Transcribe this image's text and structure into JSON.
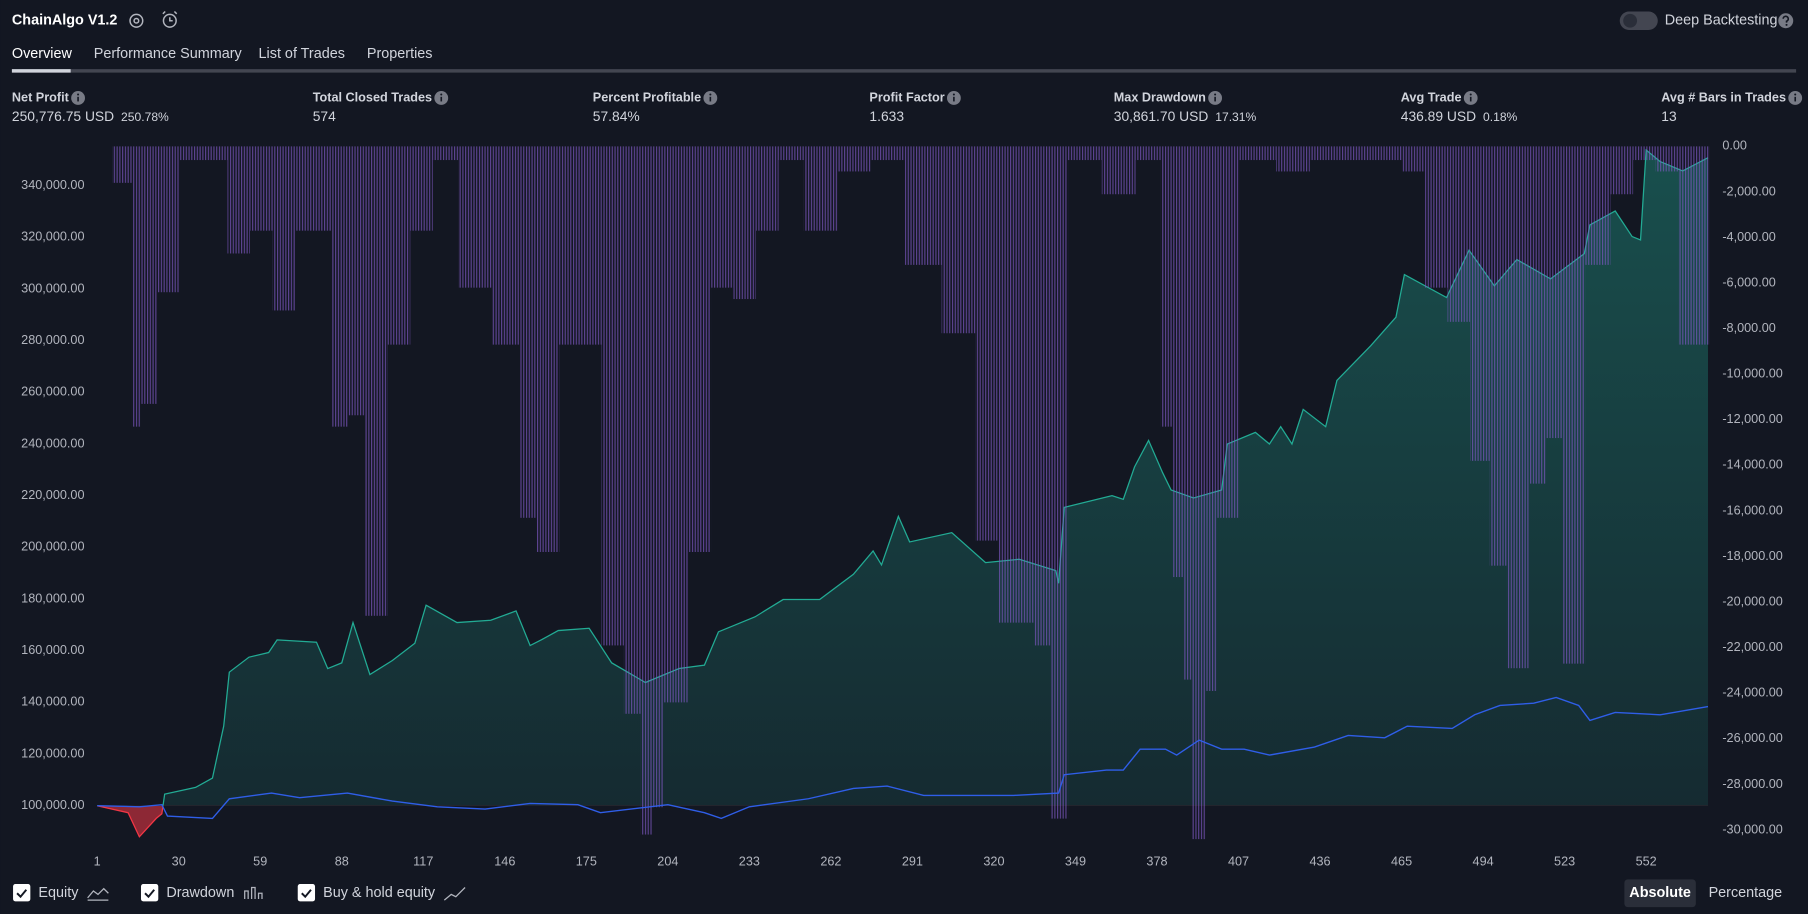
{
  "header": {
    "title": "ChainAlgo V1.2",
    "toggle_label": "Deep Backtesting"
  },
  "tabs": [
    "Overview",
    "Performance Summary",
    "List of Trades",
    "Properties"
  ],
  "stats": [
    {
      "label": "Net Profit",
      "value": "250,776.75 USD",
      "pct": "250.78%",
      "color": "#22ab94"
    },
    {
      "label": "Total Closed Trades",
      "value": "574",
      "color": "#ffffff"
    },
    {
      "label": "Percent Profitable",
      "value": "57.84%",
      "color": "#22ab94"
    },
    {
      "label": "Profit Factor",
      "value": "1.633",
      "color": "#22ab94"
    },
    {
      "label": "Max Drawdown",
      "value": "30,861.70 USD",
      "pct": "17.31%",
      "color": "#f23645"
    },
    {
      "label": "Avg Trade",
      "value": "436.89 USD",
      "pct": "0.18%",
      "color": "#22ab94"
    },
    {
      "label": "Avg # Bars in Trades",
      "value": "13",
      "color": "#ffffff"
    }
  ],
  "chart_data": {
    "type": "combo",
    "xlim": [
      1,
      575
    ],
    "xticks": [
      1,
      30,
      59,
      88,
      117,
      146,
      175,
      204,
      233,
      262,
      291,
      320,
      349,
      378,
      407,
      436,
      465,
      494,
      523,
      552
    ],
    "ylim": [
      86200,
      355200
    ],
    "yticks": [
      {
        "value": 100000,
        "label": "100,000.00"
      },
      {
        "value": 120000,
        "label": "120,000.00"
      },
      {
        "value": 140000,
        "label": "140,000.00"
      },
      {
        "value": 160000,
        "label": "160,000.00"
      },
      {
        "value": 180000,
        "label": "180,000.00"
      },
      {
        "value": 200000,
        "label": "200,000.00"
      },
      {
        "value": 220000,
        "label": "220,000.00"
      },
      {
        "value": 240000,
        "label": "240,000.00"
      },
      {
        "value": 260000,
        "label": "260,000.00"
      },
      {
        "value": 280000,
        "label": "280,000.00"
      },
      {
        "value": 300000,
        "label": "300,000.00"
      },
      {
        "value": 320000,
        "label": "320,000.00"
      },
      {
        "value": 340000,
        "label": "340,000.00"
      }
    ],
    "y2lim": [
      -30500,
      0
    ],
    "y2ticks": [
      {
        "value": 0,
        "label": "0.00"
      },
      {
        "value": -2000,
        "label": "-2,000.00"
      },
      {
        "value": -4000,
        "label": "-4,000.00"
      },
      {
        "value": -6000,
        "label": "-6,000.00"
      },
      {
        "value": -8000,
        "label": "-8,000.00"
      },
      {
        "value": -10000,
        "label": "-10,000.00"
      },
      {
        "value": -12000,
        "label": "-12,000.00"
      },
      {
        "value": -14000,
        "label": "-14,000.00"
      },
      {
        "value": -16000,
        "label": "-16,000.00"
      },
      {
        "value": -18000,
        "label": "-18,000.00"
      },
      {
        "value": -20000,
        "label": "-20,000.00"
      },
      {
        "value": -22000,
        "label": "-22,000.00"
      },
      {
        "value": -24000,
        "label": "-24,000.00"
      },
      {
        "value": -26000,
        "label": "-26,000.00"
      },
      {
        "value": -28000,
        "label": "-28,000.00"
      },
      {
        "value": -30000,
        "label": "-30,000.00"
      }
    ],
    "series": [
      {
        "name": "Equity",
        "type": "area",
        "color": "#22ab94",
        "axis": "y",
        "x": [
          1,
          12,
          16,
          22,
          24,
          25,
          36,
          42,
          46,
          48,
          55,
          62,
          65,
          79,
          83,
          88,
          92,
          98,
          106,
          114,
          118,
          129,
          141,
          150,
          155,
          159,
          165,
          176,
          184,
          196,
          208,
          217,
          222,
          235,
          245,
          258,
          270,
          277,
          280,
          286,
          290,
          305,
          317,
          329,
          342,
          343,
          345,
          362,
          366,
          370,
          375,
          380,
          383,
          391,
          401,
          403,
          413,
          418,
          422,
          426,
          430,
          438,
          442,
          454,
          463,
          466,
          481,
          489,
          498,
          506,
          518,
          530,
          532,
          541,
          547,
          550,
          552,
          557,
          565,
          574
        ],
        "values": [
          100000,
          97300,
          88000,
          95100,
          96900,
          104500,
          107100,
          110700,
          130800,
          151700,
          157500,
          159300,
          164200,
          163300,
          153100,
          155300,
          170900,
          150800,
          156200,
          162900,
          177600,
          170900,
          171800,
          175400,
          162000,
          164200,
          167800,
          168700,
          155300,
          147700,
          153100,
          154400,
          167300,
          173100,
          179800,
          179800,
          189600,
          198600,
          193200,
          212000,
          202100,
          205700,
          194100,
          195400,
          191000,
          186100,
          215500,
          220000,
          218600,
          231100,
          241400,
          228900,
          222200,
          219100,
          222200,
          240000,
          244500,
          240000,
          246700,
          240000,
          253400,
          246700,
          264600,
          278000,
          289100,
          305600,
          296700,
          315000,
          301200,
          311400,
          303900,
          313700,
          324800,
          330200,
          320300,
          319000,
          353800,
          349300,
          345700,
          350800
        ]
      },
      {
        "name": "Drawdown",
        "type": "bar",
        "color": "#7e57c2",
        "axis": "y2",
        "x": [
          8,
          15,
          18,
          24,
          32,
          40,
          49,
          57,
          65,
          73,
          86,
          92,
          98,
          106,
          114,
          122,
          131,
          143,
          153,
          159,
          167,
          176,
          182,
          190,
          196,
          200,
          204,
          213,
          221,
          229,
          237,
          245,
          254,
          266,
          278,
          290,
          303,
          315,
          323,
          336,
          342,
          348,
          360,
          372,
          381,
          385,
          389,
          392,
          397,
          401,
          409,
          422,
          434,
          446,
          459,
          467,
          475,
          483,
          491,
          498,
          504,
          512,
          518,
          524,
          532,
          541,
          549,
          557,
          565,
          573
        ],
        "values": [
          -1600,
          -12300,
          -11300,
          -6400,
          -600,
          -600,
          -4700,
          -3700,
          -7200,
          -3700,
          -12300,
          -11800,
          -20600,
          -8700,
          -3700,
          -600,
          -6200,
          -8700,
          -16300,
          -17800,
          -8700,
          -8700,
          -21900,
          -24900,
          -30200,
          -29000,
          -24400,
          -17800,
          -6200,
          -6700,
          -3700,
          -600,
          -3700,
          -1100,
          -600,
          -5200,
          -8200,
          -17300,
          -20900,
          -21900,
          -29500,
          -600,
          -2100,
          -600,
          -12300,
          -18900,
          -23400,
          -30400,
          -23900,
          -16300,
          -600,
          -1100,
          -600,
          -600,
          -600,
          -1100,
          -6200,
          -7700,
          -13800,
          -18400,
          -22900,
          -14800,
          -12800,
          -22700,
          -5200,
          -2100,
          -600,
          -1100,
          -8700,
          -8700
        ]
      },
      {
        "name": "Buy & hold equity",
        "type": "line",
        "color": "#2f5ee8",
        "axis": "y",
        "x": [
          1,
          16,
          24,
          26,
          42,
          48,
          63,
          73,
          90,
          106,
          122,
          139,
          155,
          172,
          180,
          204,
          217,
          223,
          233,
          254,
          270,
          282,
          295,
          311,
          327,
          343,
          345,
          360,
          366,
          372,
          381,
          385,
          393,
          401,
          409,
          418,
          434,
          446,
          459,
          467,
          483,
          491,
          500,
          512,
          520,
          528,
          532,
          541,
          557,
          574
        ],
        "values": [
          100000,
          99600,
          100400,
          96000,
          95100,
          102700,
          104900,
          103100,
          104900,
          101800,
          99600,
          98700,
          100900,
          100400,
          97300,
          100400,
          97300,
          95100,
          99600,
          102700,
          106700,
          107600,
          104000,
          104000,
          104000,
          104900,
          112000,
          113800,
          113800,
          121900,
          121900,
          119600,
          125400,
          121900,
          121900,
          119600,
          122700,
          127200,
          126300,
          130800,
          129900,
          135200,
          138800,
          139700,
          141900,
          138800,
          133000,
          136100,
          135200,
          138400
        ]
      }
    ]
  },
  "scale_modes": [
    "Absolute",
    "Percentage"
  ]
}
